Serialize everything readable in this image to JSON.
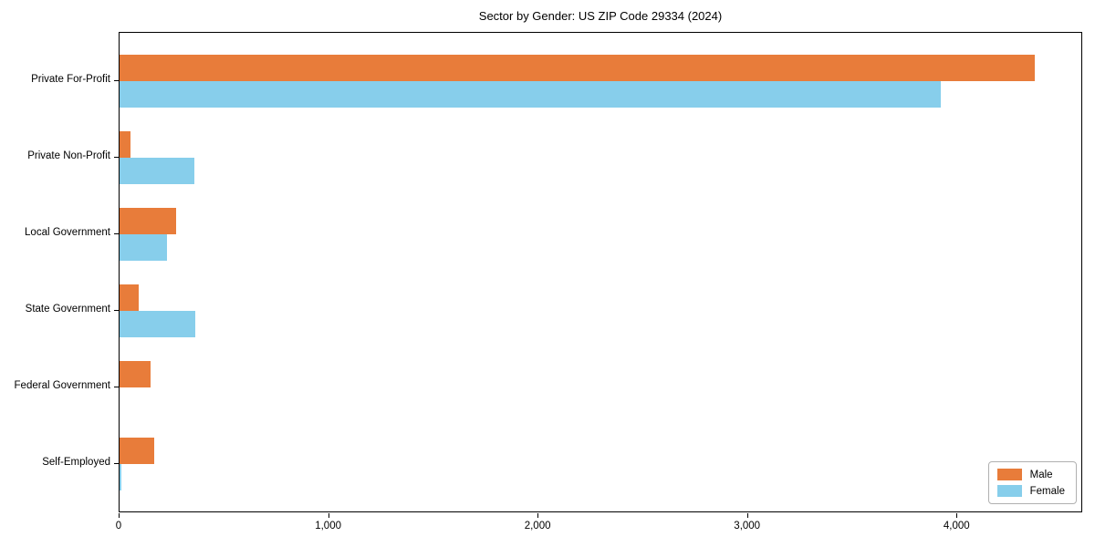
{
  "chart_data": {
    "type": "bar",
    "orientation": "horizontal",
    "title": "Sector by Gender: US ZIP Code 29334 (2024)",
    "categories": [
      "Private For-Profit",
      "Private Non-Profit",
      "Local Government",
      "State Government",
      "Federal Government",
      "Self-Employed"
    ],
    "series": [
      {
        "name": "Male",
        "color": "#e87c3a",
        "values": [
          4370,
          50,
          270,
          90,
          150,
          165
        ]
      },
      {
        "name": "Female",
        "color": "#87ceeb",
        "values": [
          3920,
          355,
          225,
          360,
          0,
          10
        ]
      }
    ],
    "xlabel": "",
    "ylabel": "",
    "xlim": [
      0,
      4600
    ],
    "xticks": [
      0,
      1000,
      2000,
      3000,
      4000
    ],
    "xtick_labels": [
      "0",
      "1,000",
      "2,000",
      "3,000",
      "4,000"
    ],
    "grid": false,
    "legend_position": "lower right",
    "legend_entries": [
      "Male",
      "Female"
    ],
    "colors": {
      "male": "#e87c3a",
      "female": "#87ceeb",
      "spine": "#000000",
      "background": "#ffffff"
    }
  }
}
